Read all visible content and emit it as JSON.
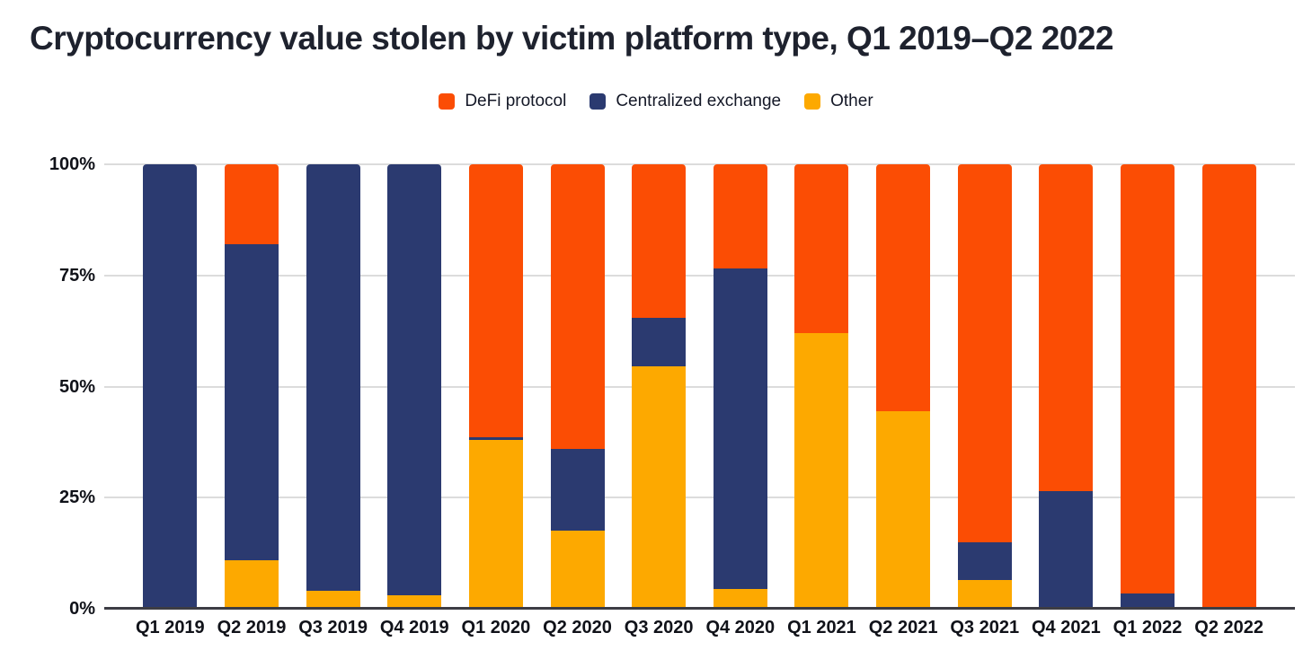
{
  "chart_data": {
    "type": "bar",
    "stacked": true,
    "stack_unit": "percent",
    "title": "Cryptocurrency value stolen by victim platform type, Q1 2019–Q2 2022",
    "categories": [
      "Q1 2019",
      "Q2 2019",
      "Q3 2019",
      "Q4 2019",
      "Q1 2020",
      "Q2 2020",
      "Q3 2020",
      "Q4 2020",
      "Q1 2021",
      "Q2 2021",
      "Q3 2021",
      "Q4 2021",
      "Q1 2022",
      "Q2 2022"
    ],
    "series": [
      {
        "name": "DeFi protocol",
        "color": "#FB4D04",
        "values": [
          0,
          18,
          0,
          0,
          61.5,
          64,
          34.5,
          23.5,
          38,
          55.5,
          85,
          73.5,
          96.5,
          100
        ]
      },
      {
        "name": "Centralized exchange",
        "color": "#2B3A70",
        "values": [
          100,
          71,
          96,
          97,
          0.5,
          18.5,
          11,
          72,
          0,
          0,
          8.5,
          26.5,
          3.5,
          0
        ]
      },
      {
        "name": "Other",
        "color": "#FDA900",
        "values": [
          0,
          11,
          4,
          3,
          38,
          17.5,
          54.5,
          4.5,
          62,
          44.5,
          6.5,
          0,
          0,
          0
        ]
      }
    ],
    "yticks": [
      "100%",
      "75%",
      "50%",
      "25%",
      "0%"
    ],
    "ylim": [
      0,
      100
    ],
    "ylabel": "",
    "xlabel": "",
    "grid": true,
    "legend_position": "top"
  }
}
